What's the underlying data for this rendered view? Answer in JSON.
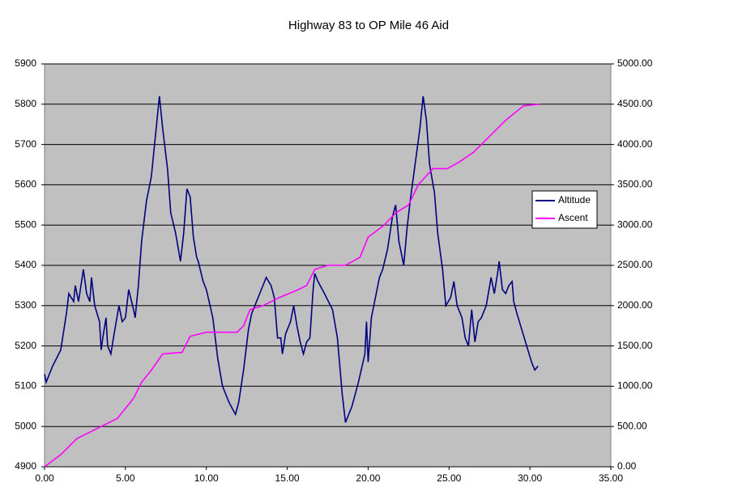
{
  "chart_data": {
    "type": "line",
    "title": "Highway 83 to OP Mile 46 Aid",
    "xlim": [
      0,
      35
    ],
    "xticks": [
      {
        "value": 0,
        "label": "0.00"
      },
      {
        "value": 5,
        "label": "5.00"
      },
      {
        "value": 10,
        "label": "10.00"
      },
      {
        "value": 15,
        "label": "15.00"
      },
      {
        "value": 20,
        "label": "20.00"
      },
      {
        "value": 25,
        "label": "25.00"
      },
      {
        "value": 30,
        "label": "30.00"
      },
      {
        "value": 35,
        "label": "35.00"
      }
    ],
    "ylim": [
      4900,
      5900
    ],
    "yticks": [
      4900,
      5000,
      5100,
      5200,
      5300,
      5400,
      5500,
      5600,
      5700,
      5800,
      5900
    ],
    "y2lim": [
      0,
      5000
    ],
    "y2ticks": [
      {
        "value": 0,
        "label": "0.00"
      },
      {
        "value": 500,
        "label": "500.00"
      },
      {
        "value": 1000,
        "label": "1000.00"
      },
      {
        "value": 1500,
        "label": "1500.00"
      },
      {
        "value": 2000,
        "label": "2000.00"
      },
      {
        "value": 2500,
        "label": "2500.00"
      },
      {
        "value": 3000,
        "label": "3000.00"
      },
      {
        "value": 3500,
        "label": "3500.00"
      },
      {
        "value": 4000,
        "label": "4000.00"
      },
      {
        "value": 4500,
        "label": "4500.00"
      },
      {
        "value": 5000,
        "label": "5000.00"
      }
    ],
    "grid": true,
    "legend": "right",
    "series": [
      {
        "name": "Altitude",
        "color": "#000080",
        "x": [
          0,
          0.1,
          0.5,
          1,
          1.35,
          1.5,
          1.8,
          1.9,
          2.1,
          2.4,
          2.6,
          2.8,
          2.9,
          3.1,
          3.4,
          3.5,
          3.6,
          3.8,
          3.9,
          4.1,
          4.3,
          4.6,
          4.8,
          5,
          5.2,
          5.5,
          5.6,
          5.8,
          6,
          6.3,
          6.6,
          6.9,
          7.1,
          7.3,
          7.6,
          7.8,
          8.1,
          8.4,
          8.6,
          8.8,
          9,
          9.2,
          9.4,
          9.5,
          9.8,
          10,
          10.4,
          10.7,
          11,
          11.4,
          11.8,
          12,
          12.3,
          12.6,
          12.8,
          13.1,
          13.4,
          13.7,
          14,
          14.2,
          14.4,
          14.6,
          14.7,
          14.9,
          15.2,
          15.4,
          15.6,
          15.8,
          16,
          16.2,
          16.4,
          16.6,
          16.7,
          16.9,
          17.3,
          17.8,
          18.1,
          18.4,
          18.6,
          19,
          19.4,
          19.8,
          19.9,
          20,
          20.2,
          20.4,
          20.7,
          20.9,
          21.2,
          21.5,
          21.7,
          21.9,
          22.2,
          22.4,
          22.6,
          22.9,
          23.2,
          23.4,
          23.6,
          23.8,
          24.1,
          24.3,
          24.6,
          24.8,
          25.1,
          25.3,
          25.5,
          25.8,
          26,
          26.2,
          26.4,
          26.6,
          26.8,
          27,
          27.3,
          27.6,
          27.8,
          28,
          28.1,
          28.3,
          28.5,
          28.7,
          28.9,
          29,
          29.2,
          29.5,
          29.8,
          30.1,
          30.3,
          30.5
        ],
        "values": [
          5130,
          5110,
          5150,
          5190,
          5280,
          5330,
          5310,
          5350,
          5310,
          5390,
          5330,
          5310,
          5370,
          5300,
          5260,
          5190,
          5220,
          5270,
          5200,
          5180,
          5230,
          5300,
          5260,
          5270,
          5340,
          5290,
          5270,
          5350,
          5460,
          5560,
          5620,
          5740,
          5820,
          5740,
          5640,
          5530,
          5480,
          5410,
          5480,
          5590,
          5570,
          5470,
          5420,
          5410,
          5360,
          5340,
          5270,
          5170,
          5100,
          5060,
          5030,
          5060,
          5140,
          5240,
          5280,
          5310,
          5340,
          5370,
          5350,
          5320,
          5220,
          5220,
          5180,
          5230,
          5260,
          5300,
          5250,
          5210,
          5180,
          5210,
          5220,
          5340,
          5380,
          5360,
          5330,
          5290,
          5220,
          5080,
          5010,
          5050,
          5110,
          5180,
          5260,
          5160,
          5270,
          5310,
          5370,
          5390,
          5440,
          5520,
          5550,
          5460,
          5400,
          5490,
          5560,
          5650,
          5740,
          5820,
          5760,
          5650,
          5580,
          5480,
          5390,
          5300,
          5320,
          5360,
          5300,
          5270,
          5220,
          5200,
          5290,
          5210,
          5260,
          5270,
          5300,
          5370,
          5330,
          5380,
          5410,
          5340,
          5330,
          5350,
          5360,
          5310,
          5280,
          5240,
          5200,
          5160,
          5140,
          5150
        ]
      },
      {
        "name": "Ascent",
        "color": "#ff00ff",
        "axis": "y2",
        "x": [
          0,
          1,
          2,
          3.5,
          4.5,
          5.5,
          6,
          6.6,
          7.3,
          8.5,
          9,
          10,
          11.9,
          12.3,
          12.7,
          13.5,
          14.5,
          15.7,
          16.2,
          16.7,
          17.5,
          18.6,
          19.5,
          20,
          21,
          21.7,
          22.5,
          23.1,
          24,
          24.9,
          25.6,
          26.5,
          27,
          28.5,
          29.6,
          30.6
        ],
        "values": [
          0,
          150,
          350,
          500,
          600,
          850,
          1050,
          1200,
          1400,
          1420,
          1620,
          1670,
          1670,
          1750,
          1950,
          2000,
          2100,
          2200,
          2250,
          2450,
          2500,
          2500,
          2600,
          2850,
          3000,
          3150,
          3250,
          3500,
          3700,
          3700,
          3780,
          3900,
          4000,
          4300,
          4480,
          4500
        ]
      }
    ]
  }
}
